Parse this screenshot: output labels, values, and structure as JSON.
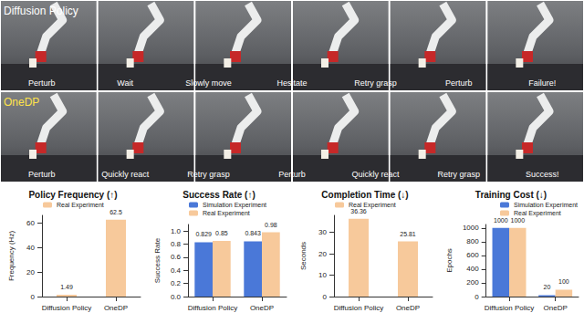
{
  "photo_rows": [
    {
      "label": "Diffusion Policy",
      "captions": [
        "Perturb",
        "Wait",
        "Slowly move",
        "Hesitate",
        "Retry grasp",
        "Perturb",
        "Failure!"
      ]
    },
    {
      "label": "OneDP",
      "captions": [
        "Perturb",
        "Quickly react",
        "Retry grasp",
        "Perturb",
        "Quickly react",
        "Retry grasp",
        "Success!"
      ]
    }
  ],
  "chart_data": [
    {
      "type": "bar",
      "title": "Policy Frequency (↑)",
      "y_label": "Frequency (Hz)",
      "categories": [
        "Diffusion Policy",
        "OneDP"
      ],
      "series": [
        {
          "name": "Real Experiment",
          "color": "#f7c99b",
          "values": [
            1.49,
            62.5
          ]
        }
      ],
      "ylim": [
        0,
        66
      ],
      "yticks": [
        0,
        20,
        40,
        60
      ],
      "grid": false,
      "legend": "upper left",
      "data_labels": true
    },
    {
      "type": "bar",
      "title": "Success Rate (↑)",
      "y_label": "Success Rate",
      "categories": [
        "Diffusion Policy",
        "OneDP"
      ],
      "series": [
        {
          "name": "Simulation Experiment",
          "color": "#4a78d8",
          "values": [
            0.829,
            0.843
          ]
        },
        {
          "name": "Real Experiment",
          "color": "#f7c99b",
          "values": [
            0.85,
            0.98
          ]
        }
      ],
      "ylim": [
        0,
        1.1
      ],
      "yticks": [
        {
          "value": 0,
          "label": "0.0"
        },
        0.2,
        0.4,
        0.6,
        0.8,
        {
          "value": 1,
          "label": "1.0"
        }
      ],
      "grid": false,
      "legend": "upper left",
      "data_labels": true
    },
    {
      "type": "bar",
      "title": "Completion Time (↓)",
      "y_label": "Seconds",
      "categories": [
        "Diffusion Policy",
        "OneDP"
      ],
      "series": [
        {
          "name": "Real Experiment",
          "color": "#f7c99b",
          "values": [
            36.36,
            25.81
          ]
        }
      ],
      "ylim": [
        0,
        38
      ],
      "yticks": [
        0,
        10,
        20,
        30
      ],
      "grid": false,
      "legend": "upper left",
      "data_labels": true
    },
    {
      "type": "bar",
      "title": "Training Cost (↓)",
      "y_label": "Epochs",
      "categories": [
        "Diffusion Policy",
        "OneDP"
      ],
      "series": [
        {
          "name": "Simulation Experiment",
          "color": "#4a78d8",
          "values": [
            1000,
            20
          ]
        },
        {
          "name": "Real Experiment",
          "color": "#f7c99b",
          "values": [
            1000,
            100
          ]
        }
      ],
      "ylim": [
        0,
        1050
      ],
      "yticks": [
        0,
        200,
        400,
        600,
        800,
        1000
      ],
      "grid": false,
      "legend": "upper right",
      "data_labels": true
    }
  ]
}
